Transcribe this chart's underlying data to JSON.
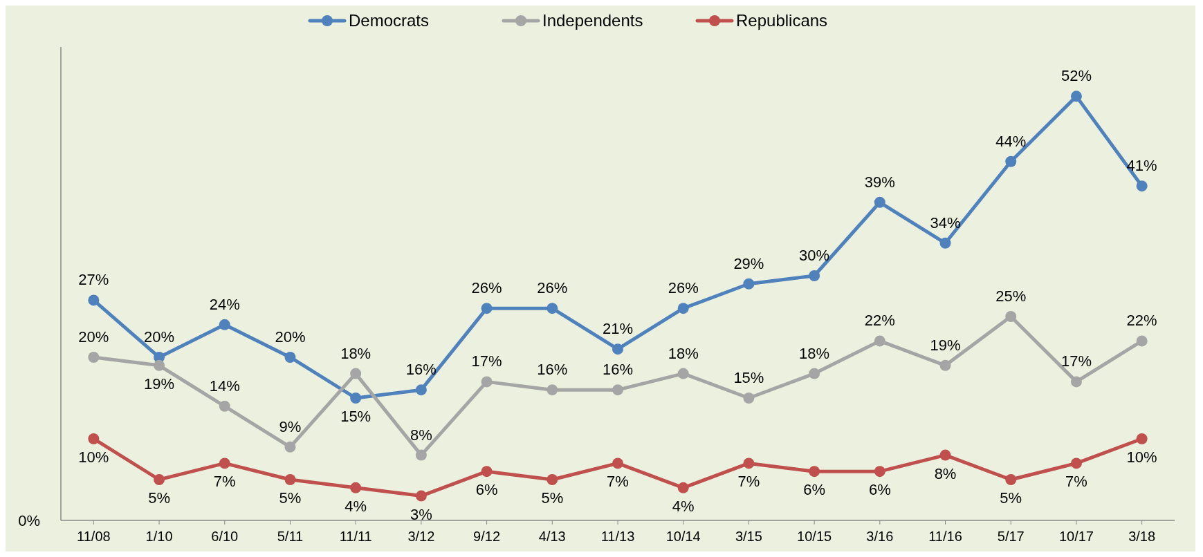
{
  "chart_data": {
    "type": "line",
    "categories": [
      "11/08",
      "1/10",
      "6/10",
      "5/11",
      "11/11",
      "3/12",
      "9/12",
      "4/13",
      "11/13",
      "10/14",
      "3/15",
      "10/15",
      "3/16",
      "11/16",
      "5/17",
      "10/17",
      "3/18"
    ],
    "series": [
      {
        "name": "Democrats",
        "color": "#4f81bd",
        "values": [
          27,
          20,
          24,
          20,
          15,
          16,
          26,
          26,
          21,
          26,
          29,
          30,
          39,
          34,
          44,
          52,
          41
        ],
        "value_labels": [
          "27%",
          "20%",
          "24%",
          "20%",
          "15%",
          "16%",
          "26%",
          "26%",
          "21%",
          "26%",
          "29%",
          "30%",
          "39%",
          "34%",
          "44%",
          "52%",
          "41%"
        ]
      },
      {
        "name": "Independents",
        "color": "#a5a5a5",
        "values": [
          20,
          19,
          14,
          9,
          18,
          8,
          17,
          16,
          16,
          18,
          15,
          18,
          22,
          19,
          25,
          17,
          22
        ],
        "value_labels": [
          "20%",
          "19%",
          "14%",
          "9%",
          "18%",
          "8%",
          "17%",
          "16%",
          "16%",
          "18%",
          "15%",
          "18%",
          "22%",
          "19%",
          "25%",
          "17%",
          "22%"
        ]
      },
      {
        "name": "Republicans",
        "color": "#c0504d",
        "values": [
          10,
          5,
          7,
          5,
          4,
          3,
          6,
          5,
          7,
          4,
          7,
          6,
          6,
          8,
          5,
          7,
          10
        ],
        "value_labels": [
          "10%",
          "5%",
          "7%",
          "5%",
          "4%",
          "3%",
          "6%",
          "5%",
          "7%",
          "4%",
          "7%",
          "6%",
          "6%",
          "8%",
          "5%",
          "7%",
          "10%"
        ]
      }
    ],
    "annotations": [
      "0%"
    ],
    "legend": "top",
    "marker": "circle",
    "line_style": "solid"
  }
}
